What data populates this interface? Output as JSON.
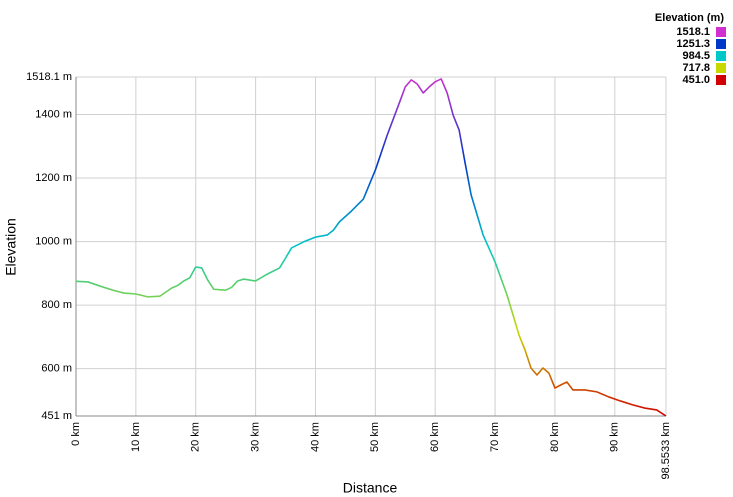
{
  "chart_data": {
    "type": "line",
    "x_label": "Distance",
    "y_label": "Elevation",
    "x": [
      0,
      2,
      4,
      6,
      8,
      10,
      12,
      14,
      16,
      17,
      18,
      19,
      20,
      21,
      22,
      23,
      25,
      26,
      27,
      28,
      30,
      32,
      34,
      35,
      36,
      38,
      40,
      42,
      43,
      44,
      46,
      48,
      50,
      52,
      54,
      55,
      56,
      57,
      58,
      59,
      60,
      61,
      62,
      63,
      64,
      65,
      66,
      67,
      68,
      70,
      72,
      74,
      75,
      76,
      77,
      78,
      79,
      80,
      81,
      82,
      83,
      85,
      87,
      89,
      91,
      93,
      95,
      97,
      98.5533
    ],
    "series": [
      {
        "name": "Elevation",
        "values": [
          875,
          873,
          860,
          848,
          838,
          835,
          826,
          828,
          854,
          862,
          876,
          886,
          920,
          917,
          879,
          850,
          847,
          856,
          876,
          882,
          876,
          898,
          917,
          948,
          980,
          999,
          1014,
          1021,
          1036,
          1062,
          1096,
          1134,
          1225,
          1336,
          1436,
          1487,
          1509,
          1496,
          1468,
          1487,
          1503,
          1512,
          1468,
          1398,
          1351,
          1247,
          1147,
          1084,
          1021,
          936,
          832,
          706,
          659,
          602,
          580,
          602,
          586,
          539,
          549,
          558,
          533,
          533,
          527,
          511,
          498,
          486,
          476,
          470,
          451
        ]
      }
    ],
    "xlim": [
      0,
      98.5533
    ],
    "xticks": [
      {
        "value": 0,
        "label": "0 km"
      },
      {
        "value": 10,
        "label": "10 km"
      },
      {
        "value": 20,
        "label": "20 km"
      },
      {
        "value": 30,
        "label": "30 km"
      },
      {
        "value": 40,
        "label": "40 km"
      },
      {
        "value": 50,
        "label": "50 km"
      },
      {
        "value": 60,
        "label": "60 km"
      },
      {
        "value": 70,
        "label": "70 km"
      },
      {
        "value": 80,
        "label": "80 km"
      },
      {
        "value": 90,
        "label": "90 km"
      },
      {
        "value": 98.5533,
        "label": "98.5533 km"
      }
    ],
    "ylim": [
      451,
      1518.1
    ],
    "yticks": [
      {
        "value": 451,
        "label": "451 m"
      },
      {
        "value": 600,
        "label": "600 m"
      },
      {
        "value": 800,
        "label": "800 m"
      },
      {
        "value": 1000,
        "label": "1000 m"
      },
      {
        "value": 1200,
        "label": "1200 m"
      },
      {
        "value": 1400,
        "label": "1400 m"
      },
      {
        "value": 1518.1,
        "label": "1518.1 m"
      }
    ],
    "grid": true,
    "color_scale": {
      "title": "Elevation (m)",
      "stops": [
        {
          "value": 1518.1,
          "color": "#d030d0"
        },
        {
          "value": 1251.3,
          "color": "#0038c8"
        },
        {
          "value": 984.5,
          "color": "#00c8c8"
        },
        {
          "value": 717.8,
          "color": "#c8d800"
        },
        {
          "value": 451,
          "label": "451.0",
          "color": "#d00000"
        }
      ]
    }
  }
}
